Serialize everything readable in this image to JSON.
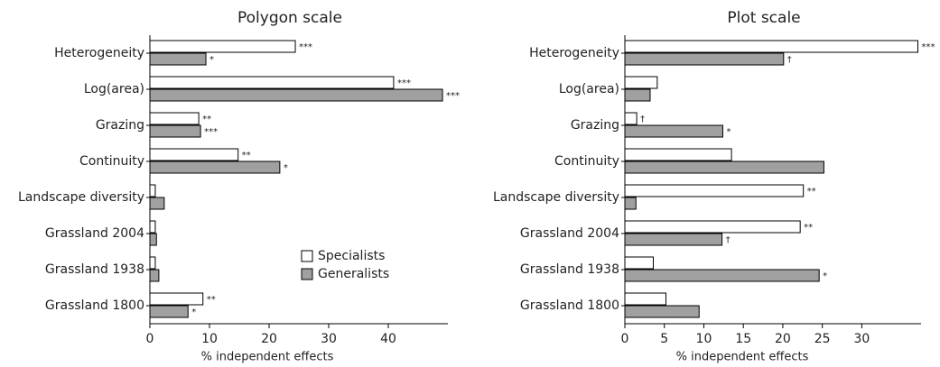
{
  "chart_data": [
    {
      "type": "hbar",
      "title": "Polygon scale",
      "x_label": "% independent effects",
      "categories": [
        "Heterogeneity",
        "Log(area)",
        "Grazing",
        "Continuity",
        "Landscape diversity",
        "Grassland 2004",
        "Grassland 1938",
        "Grassland 1800"
      ],
      "series": [
        {
          "name": "Specialists",
          "color": "#ffffff",
          "values": [
            24.4,
            40.9,
            8.2,
            14.8,
            0.9,
            0.9,
            0.9,
            8.9
          ],
          "significance": [
            "***",
            "***",
            "**",
            "**",
            null,
            null,
            null,
            "**"
          ]
        },
        {
          "name": "Generalists",
          "color": "#a0a0a0",
          "values": [
            9.4,
            49.1,
            8.5,
            21.8,
            2.4,
            1.1,
            1.5,
            6.4
          ],
          "significance": [
            "*",
            "***",
            "***",
            "*",
            null,
            null,
            null,
            "*"
          ]
        }
      ],
      "xlim": [
        0,
        50
      ],
      "xticks": [
        0,
        10,
        20,
        30,
        40
      ],
      "legend": "lower right"
    },
    {
      "type": "hbar",
      "title": "Plot scale",
      "x_label": "% independent effects",
      "categories": [
        "Heterogeneity",
        "Log(area)",
        "Grazing",
        "Continuity",
        "Landscape diversity",
        "Grassland 2004",
        "Grassland 1938",
        "Grassland 1800"
      ],
      "series": [
        {
          "name": "Specialists",
          "color": "#ffffff",
          "values": [
            37.1,
            4.1,
            1.5,
            13.5,
            22.6,
            22.2,
            3.6,
            5.2
          ],
          "significance": [
            "***",
            null,
            "†",
            null,
            "**",
            "**",
            null,
            null
          ]
        },
        {
          "name": "Generalists",
          "color": "#a0a0a0",
          "values": [
            20.1,
            3.2,
            12.4,
            25.2,
            1.4,
            12.3,
            24.6,
            9.4
          ],
          "significance": [
            "†",
            null,
            "*",
            null,
            null,
            "†",
            "*",
            null
          ]
        }
      ],
      "xlim": [
        0,
        37.5
      ],
      "xticks": [
        0,
        5,
        10,
        15,
        20,
        25,
        30
      ]
    }
  ]
}
